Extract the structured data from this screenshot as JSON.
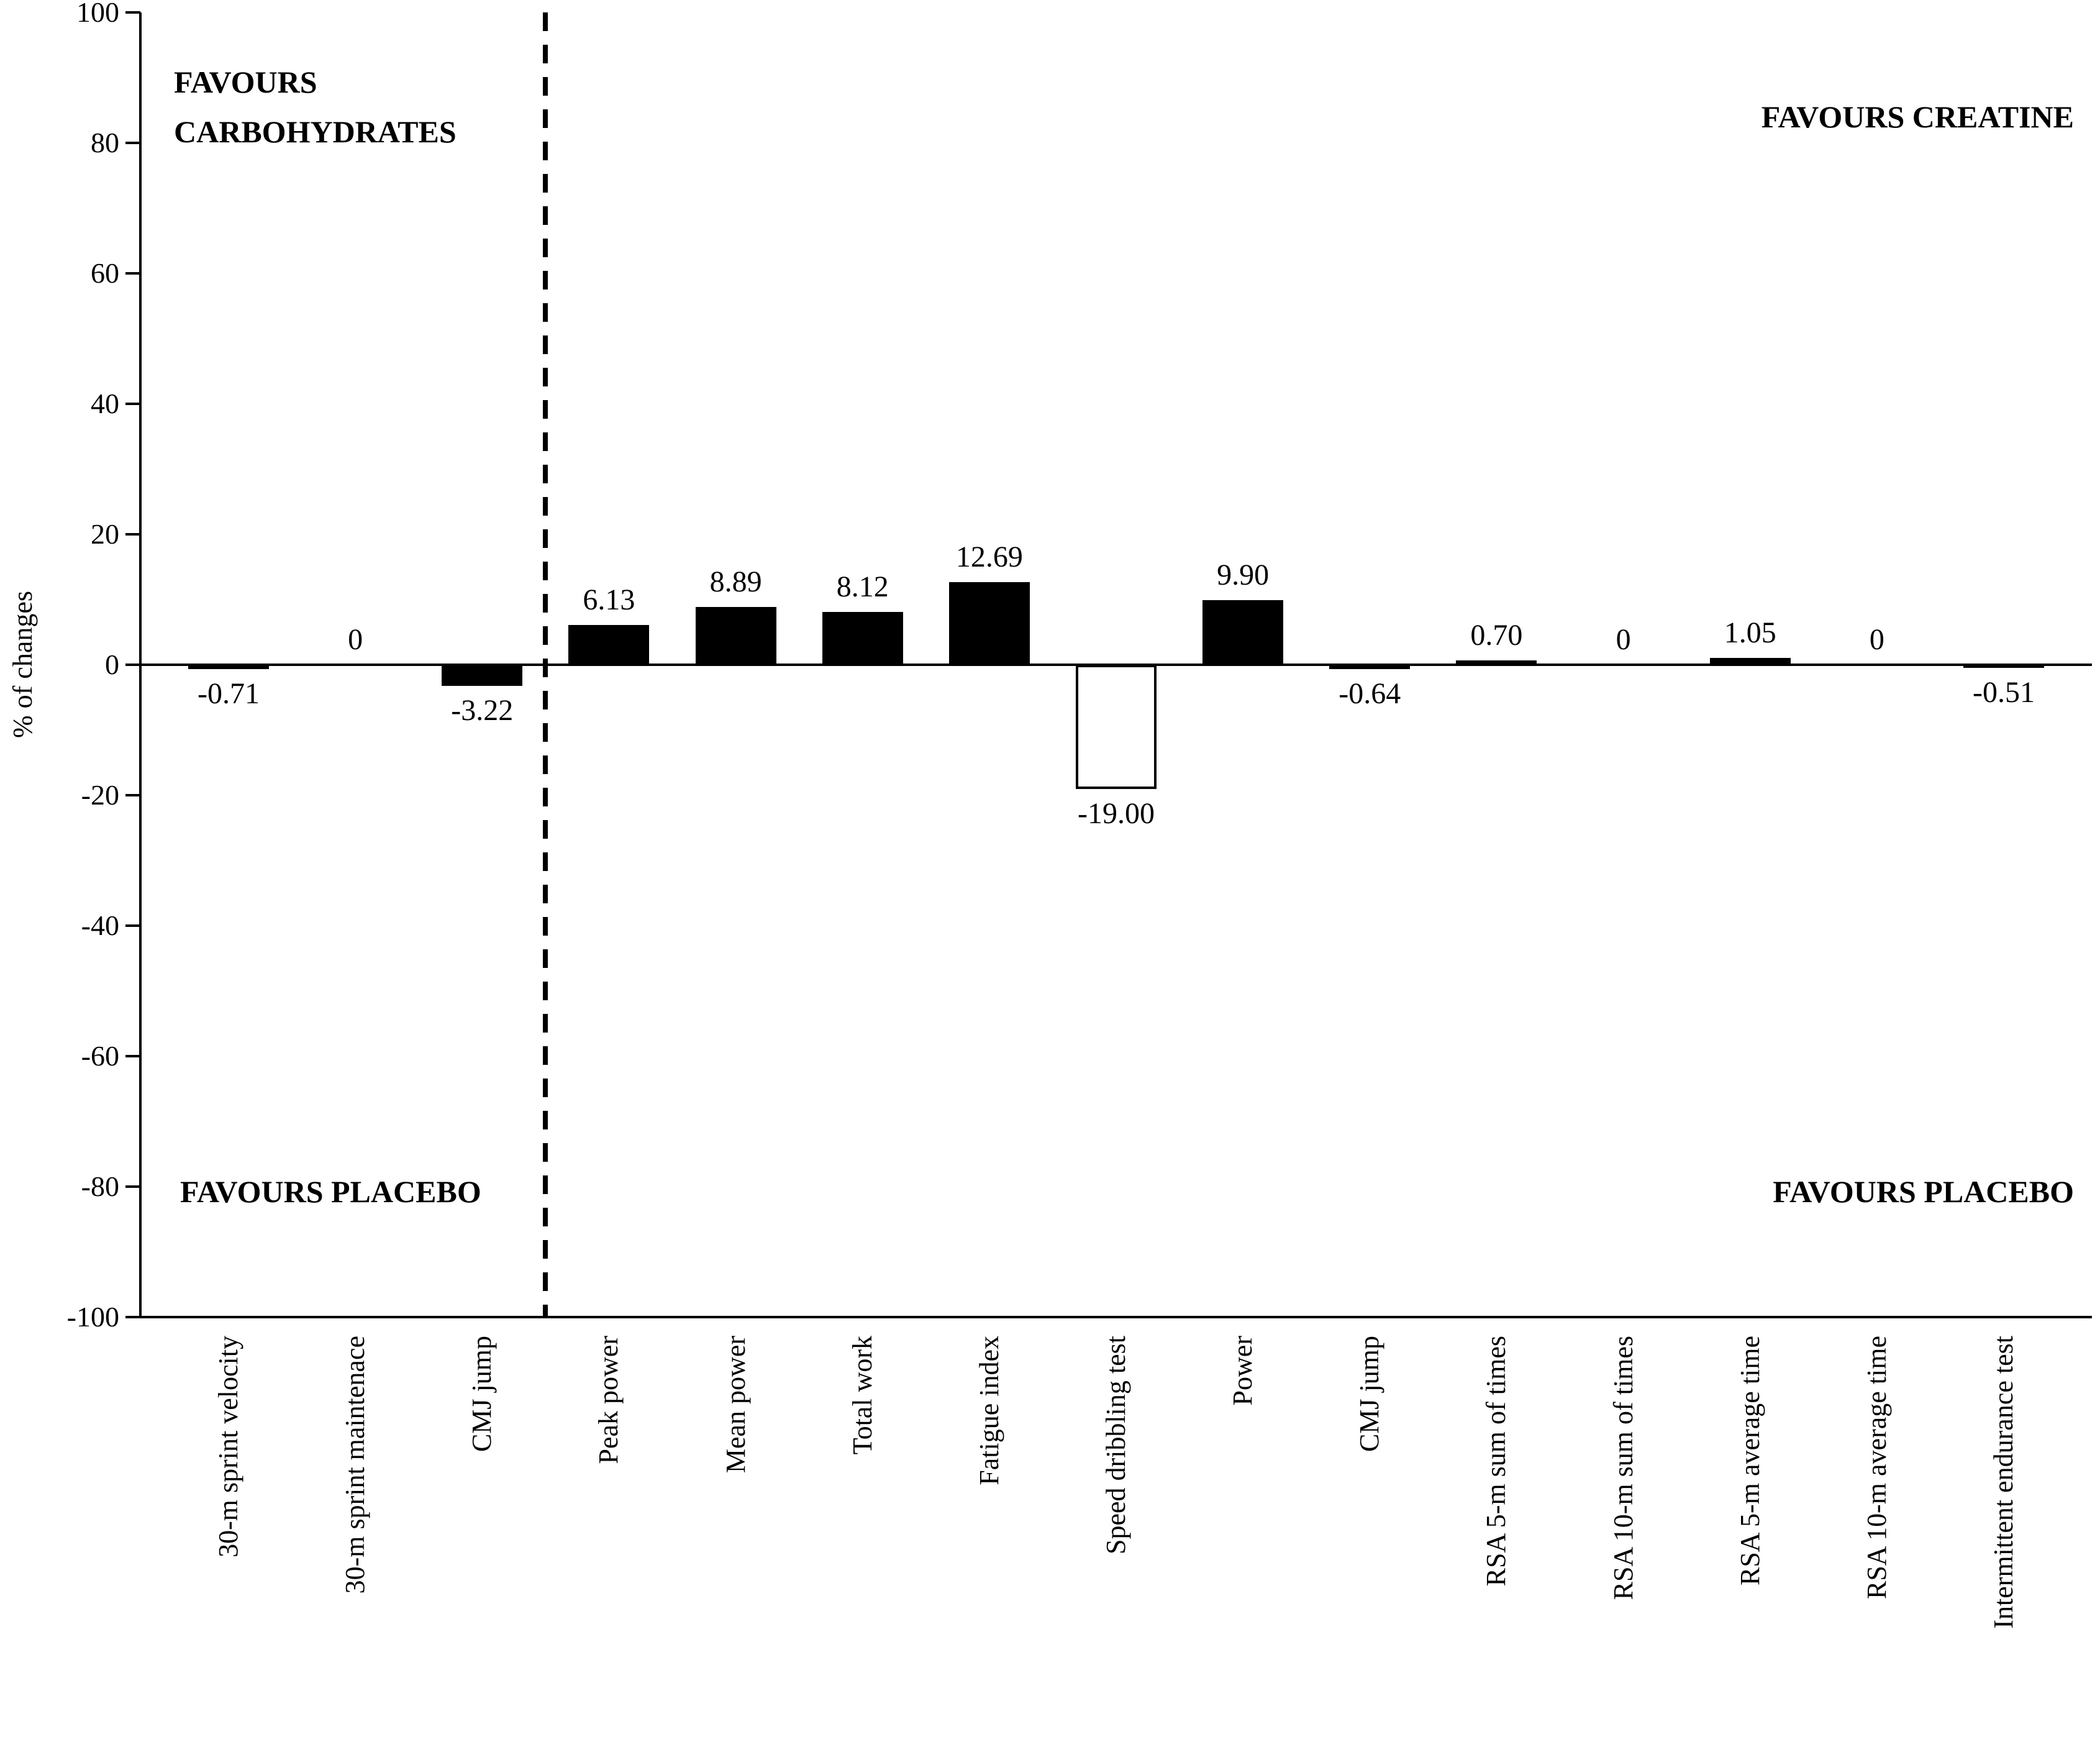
{
  "chart_data": {
    "type": "bar",
    "title": "",
    "ylabel": "% of changes",
    "ylim": [
      -100,
      100
    ],
    "yticks": [
      100,
      80,
      60,
      40,
      20,
      0,
      -20,
      -40,
      -60,
      -80,
      -100
    ],
    "grid": false,
    "legend": "none",
    "categories": [
      "30-m sprint velocity",
      "30-m sprint maintenace",
      "CMJ jump",
      "Peak power",
      "Mean power",
      "Total work",
      "Fatigue index",
      "Speed dribbling test",
      "Power",
      "CMJ jump",
      "RSA 5-m sum of times",
      "RSA 10-m sum of times",
      "RSA 5-m average time",
      "RSA 10-m average time",
      "Intermittent endurance test"
    ],
    "values": [
      -0.71,
      0,
      -3.22,
      6.13,
      8.89,
      8.12,
      12.69,
      -19.0,
      9.9,
      -0.64,
      0.7,
      0,
      1.05,
      0,
      -0.51
    ],
    "value_labels": [
      "-0.71",
      "0",
      "-3.22",
      "6.13",
      "8.89",
      "8.12",
      "12.69",
      "-19.00",
      "9.90",
      "-0.64",
      "0.70",
      "0",
      "1.05",
      "0",
      "-0.51"
    ],
    "bar_fills": [
      "#000000",
      "#000000",
      "#000000",
      "#000000",
      "#000000",
      "#000000",
      "#000000",
      "#ffffff",
      "#000000",
      "#000000",
      "#000000",
      "#000000",
      "#000000",
      "#000000",
      "#000000"
    ],
    "separator": {
      "after_category_index": 2,
      "style": "dashed-vertical-line"
    },
    "annotations": {
      "top_left_line1": "FAVOURS",
      "top_left_line2": "CARBOHYDRATES",
      "top_right": "FAVOURS CREATINE",
      "bottom_left": "FAVOURS PLACEBO",
      "bottom_right": "FAVOURS PLACEBO"
    },
    "colors": {
      "bar": "#000000",
      "bar_outline": "#000000",
      "axis": "#000000",
      "background": "#ffffff"
    }
  }
}
